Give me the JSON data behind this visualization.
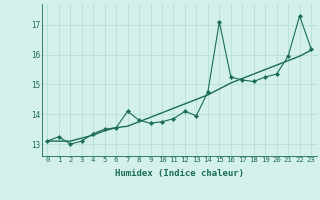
{
  "xlabel": "Humidex (Indice chaleur)",
  "background_color": "#d4f0ea",
  "line_color": "#1a6b5a",
  "x_data": [
    0,
    1,
    2,
    3,
    4,
    5,
    6,
    7,
    8,
    9,
    10,
    11,
    12,
    13,
    14,
    15,
    16,
    17,
    18,
    19,
    20,
    21,
    22,
    23
  ],
  "y_data1": [
    13.1,
    13.25,
    13.0,
    13.1,
    13.35,
    13.5,
    13.55,
    14.1,
    13.8,
    13.7,
    13.75,
    13.85,
    14.1,
    13.95,
    14.75,
    17.1,
    15.25,
    15.15,
    15.1,
    15.25,
    15.35,
    15.95,
    17.3,
    16.2
  ],
  "y_data2": [
    13.1,
    13.1,
    13.1,
    13.2,
    13.3,
    13.45,
    13.55,
    13.6,
    13.75,
    13.9,
    14.05,
    14.2,
    14.35,
    14.5,
    14.65,
    14.85,
    15.05,
    15.2,
    15.35,
    15.5,
    15.65,
    15.8,
    15.95,
    16.15
  ],
  "yticks": [
    13,
    14,
    15,
    16,
    17
  ],
  "xtick_labels": [
    "0",
    "1",
    "2",
    "3",
    "4",
    "5",
    "6",
    "7",
    "8",
    "9",
    "10",
    "11",
    "12",
    "13",
    "14",
    "15",
    "16",
    "17",
    "18",
    "19",
    "20",
    "21",
    "22",
    "23"
  ],
  "ylim": [
    12.6,
    17.7
  ],
  "xlim": [
    -0.5,
    23.5
  ],
  "grid_color": "#b0ddd5",
  "marker": "D",
  "markersize": 2.2,
  "linewidth1": 0.8,
  "linewidth2": 1.0,
  "tick_fontsize": 5.2,
  "xlabel_fontsize": 6.5
}
